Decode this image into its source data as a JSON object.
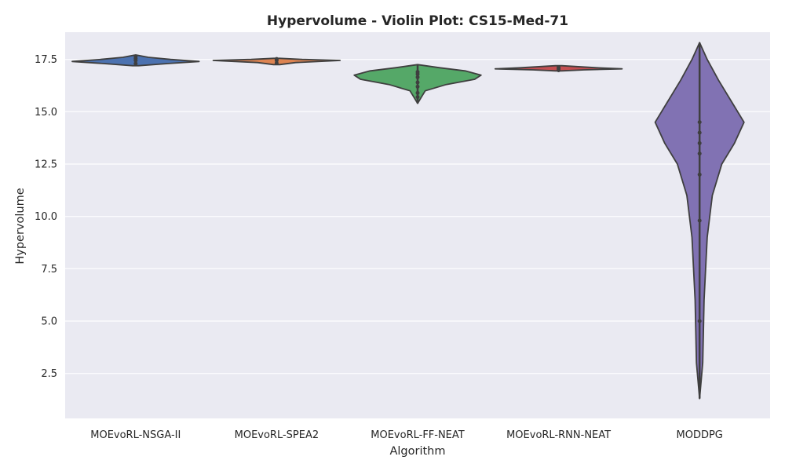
{
  "chart_data": {
    "type": "violin",
    "title": "Hypervolume - Violin Plot: CS15-Med-71",
    "xlabel": "Algorithm",
    "ylabel": "Hypervolume",
    "ylim": [
      0.35,
      18.8
    ],
    "yticks": [
      2.5,
      5.0,
      7.5,
      10.0,
      12.5,
      15.0,
      17.5
    ],
    "ytick_labels": [
      "2.5",
      "5.0",
      "7.5",
      "10.0",
      "12.5",
      "15.0",
      "17.5"
    ],
    "grid": true,
    "legend": "none",
    "categories": [
      "MOEvoRL-NSGA-II",
      "MOEvoRL-SPEA2",
      "MOEvoRL-FF-NEAT",
      "MOEvoRL-RNN-NEAT",
      "MODDPG"
    ],
    "series": [
      {
        "category": "MOEvoRL-NSGA-II",
        "color": "#4c72b0",
        "min": 17.2,
        "max": 17.7,
        "profile": [
          [
            17.2,
            0.05
          ],
          [
            17.3,
            0.5
          ],
          [
            17.4,
            1.0
          ],
          [
            17.5,
            0.55
          ],
          [
            17.6,
            0.2
          ],
          [
            17.7,
            0.02
          ]
        ],
        "points": [
          17.3,
          17.45,
          17.55,
          17.65
        ]
      },
      {
        "category": "MOEvoRL-SPEA2",
        "color": "#dd8452",
        "min": 17.25,
        "max": 17.55,
        "profile": [
          [
            17.25,
            0.05
          ],
          [
            17.35,
            0.3
          ],
          [
            17.45,
            1.0
          ],
          [
            17.5,
            0.4
          ],
          [
            17.55,
            0.05
          ]
        ],
        "points": [
          17.32,
          17.45,
          17.52
        ]
      },
      {
        "category": "MOEvoRL-FF-NEAT",
        "color": "#55a868",
        "min": 15.4,
        "max": 17.25,
        "profile": [
          [
            15.4,
            0.0
          ],
          [
            15.7,
            0.06
          ],
          [
            16.0,
            0.12
          ],
          [
            16.3,
            0.45
          ],
          [
            16.55,
            0.9
          ],
          [
            16.75,
            1.0
          ],
          [
            16.95,
            0.75
          ],
          [
            17.1,
            0.35
          ],
          [
            17.25,
            0.0
          ]
        ],
        "points": [
          15.7,
          15.9,
          16.2,
          16.4,
          16.65,
          16.8,
          16.9
        ]
      },
      {
        "category": "MOEvoRL-RNN-NEAT",
        "color": "#c44e52",
        "min": 16.95,
        "max": 17.2,
        "profile": [
          [
            16.95,
            0.05
          ],
          [
            17.0,
            0.4
          ],
          [
            17.05,
            1.0
          ],
          [
            17.1,
            0.6
          ],
          [
            17.2,
            0.05
          ]
        ],
        "points": [
          16.98,
          17.05,
          17.12
        ]
      },
      {
        "category": "MODDPG",
        "color": "#8172b3",
        "min": 1.3,
        "max": 18.3,
        "profile": [
          [
            1.3,
            0.0
          ],
          [
            3.0,
            0.05
          ],
          [
            6.0,
            0.07
          ],
          [
            9.0,
            0.12
          ],
          [
            11.0,
            0.2
          ],
          [
            12.5,
            0.35
          ],
          [
            13.5,
            0.55
          ],
          [
            14.5,
            0.7
          ],
          [
            15.5,
            0.5
          ],
          [
            16.5,
            0.3
          ],
          [
            17.5,
            0.12
          ],
          [
            18.3,
            0.0
          ]
        ],
        "points": [
          5.0,
          9.8,
          12.0,
          13.0,
          13.5,
          14.0,
          14.5
        ]
      }
    ]
  }
}
